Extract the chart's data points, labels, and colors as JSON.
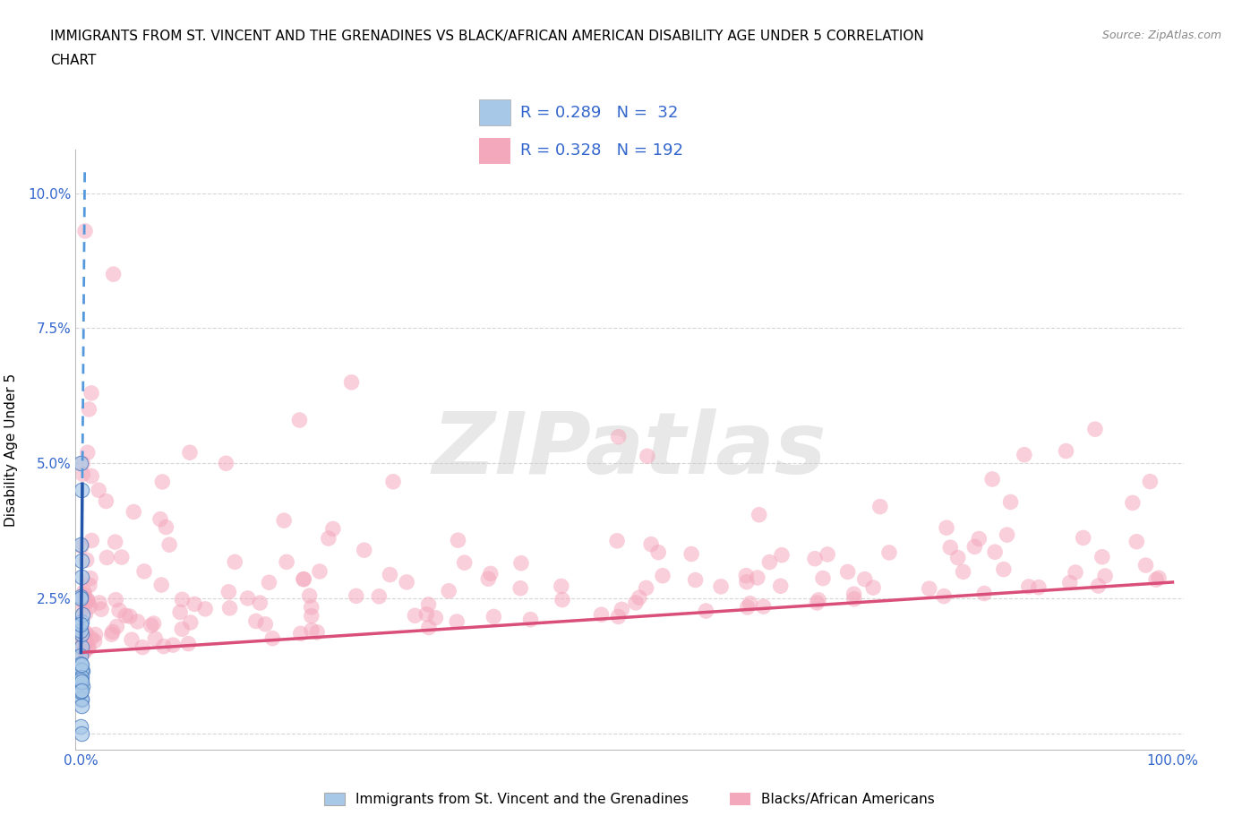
{
  "title_line1": "IMMIGRANTS FROM ST. VINCENT AND THE GRENADINES VS BLACK/AFRICAN AMERICAN DISABILITY AGE UNDER 5 CORRELATION",
  "title_line2": "CHART",
  "source": "Source: ZipAtlas.com",
  "ylabel": "Disability Age Under 5",
  "xlim": [
    -0.5,
    101
  ],
  "ylim": [
    -0.3,
    10.8
  ],
  "yticks": [
    0.0,
    2.5,
    5.0,
    7.5,
    10.0
  ],
  "ytick_labels": [
    "",
    "2.5%",
    "5.0%",
    "7.5%",
    "10.0%"
  ],
  "xtick_labels": [
    "0.0%",
    "100.0%"
  ],
  "xticks": [
    0,
    100
  ],
  "blue_fill": "#a8c8e8",
  "blue_edge": "#4477bb",
  "blue_line_solid": "#2255aa",
  "blue_line_dash": "#5599dd",
  "pink_fill": "#f4a8bc",
  "pink_trend": "#d94f7a",
  "grid_color": "#cccccc",
  "grid_style": "--",
  "legend_entry1": "Immigrants from St. Vincent and the Grenadines",
  "legend_entry2": "Blacks/African Americans",
  "legend_R1": "R = 0.289",
  "legend_N1": "N =  32",
  "legend_R2": "R = 0.328",
  "legend_N2": "N = 192",
  "watermark": "ZIPatlas",
  "title_fontsize": 11,
  "tick_fontsize": 11,
  "legend_fontsize": 13,
  "ylabel_fontsize": 11
}
